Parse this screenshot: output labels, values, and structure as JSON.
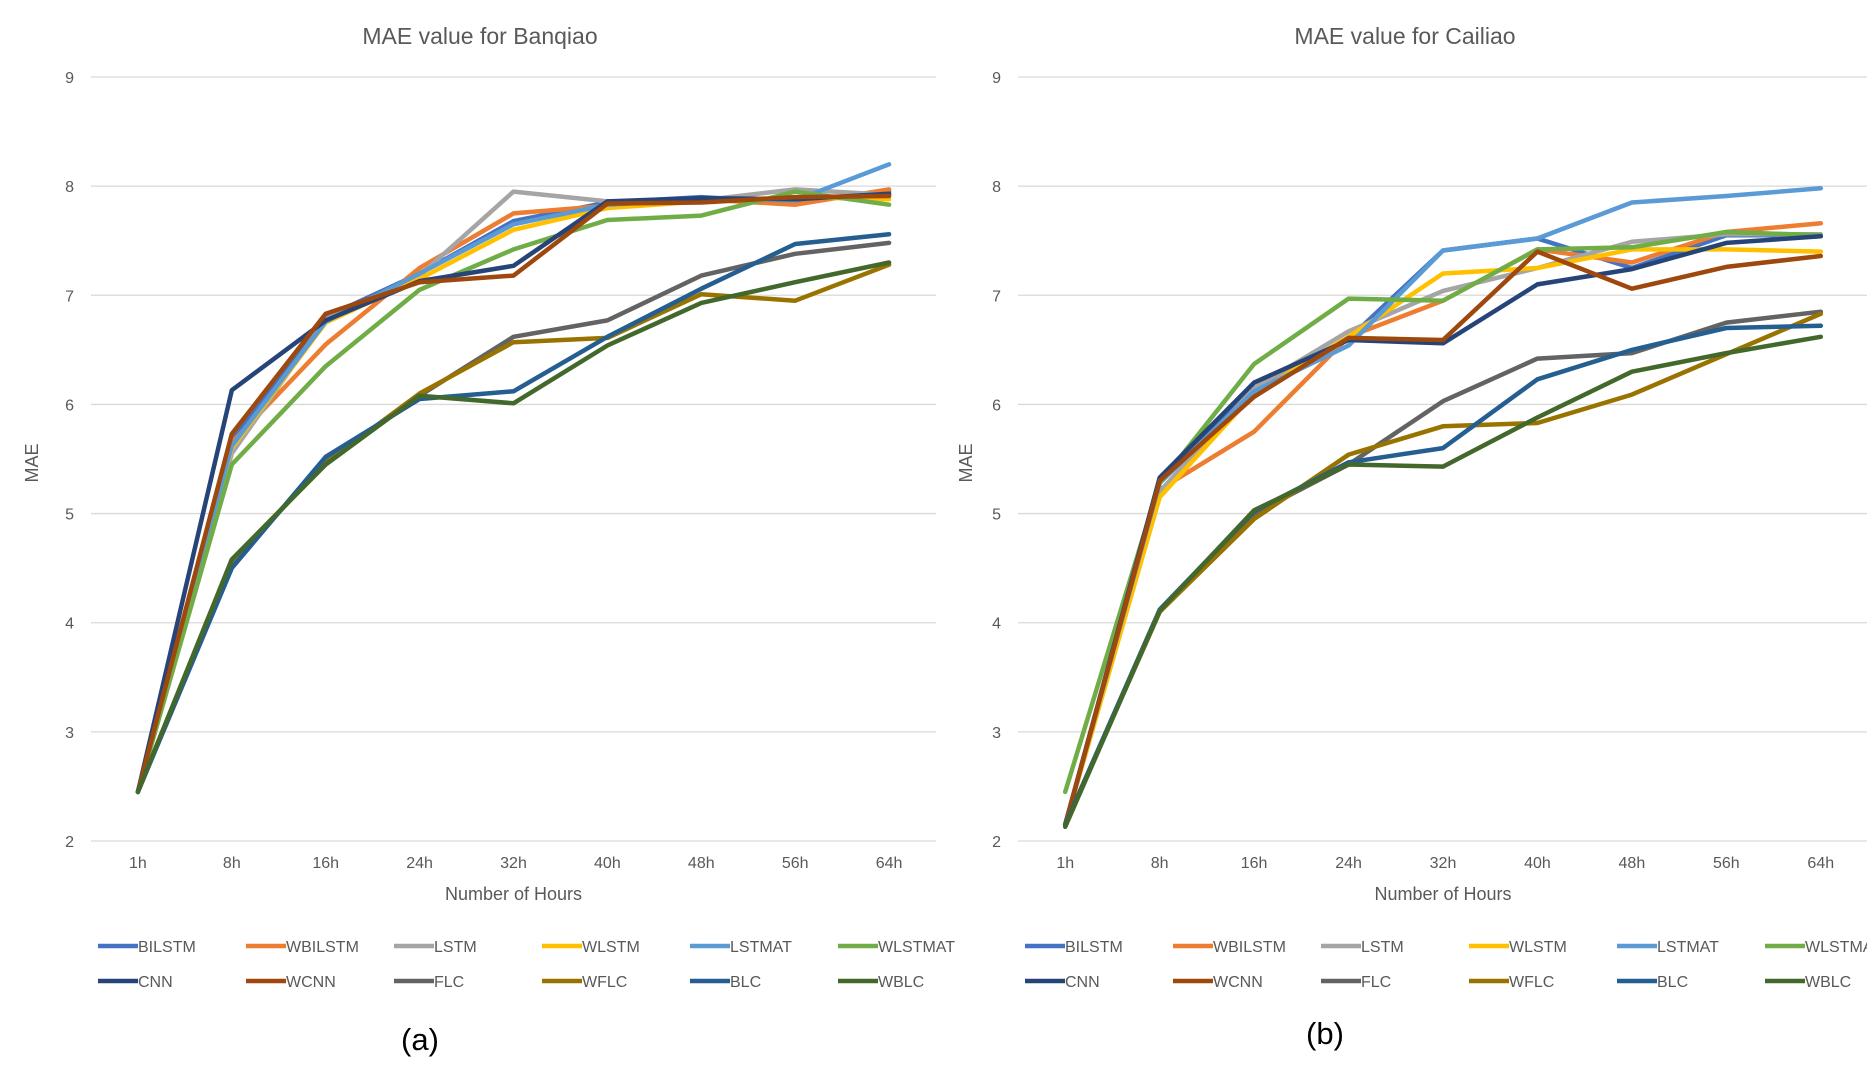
{
  "chart_data": [
    {
      "type": "line",
      "title": "MAE value for Banqiao",
      "xlabel": "Number of Hours",
      "ylabel": "MAE",
      "panel_label": "(a)",
      "ylim": [
        2,
        9
      ],
      "yticks": [
        "2",
        "3",
        "4",
        "5",
        "6",
        "7",
        "8",
        "9"
      ],
      "categories": [
        "1h",
        "8h",
        "16h",
        "24h",
        "32h",
        "40h",
        "48h",
        "56h",
        "64h"
      ],
      "grid": true,
      "legend_position": "bottom",
      "series": [
        {
          "name": "BILSTM",
          "color": "#4472C4",
          "values": [
            2.45,
            5.68,
            6.8,
            7.2,
            7.68,
            7.85,
            7.9,
            7.85,
            7.95
          ]
        },
        {
          "name": "WBILSTM",
          "color": "#ED7D31",
          "values": [
            2.45,
            5.65,
            6.55,
            7.25,
            7.75,
            7.82,
            7.88,
            7.83,
            7.97
          ]
        },
        {
          "name": "LSTM",
          "color": "#A5A5A5",
          "values": [
            2.45,
            5.55,
            6.78,
            7.18,
            7.95,
            7.86,
            7.87,
            7.97,
            7.92
          ]
        },
        {
          "name": "WLSTM",
          "color": "#FFC000",
          "values": [
            2.45,
            5.6,
            6.75,
            7.15,
            7.6,
            7.8,
            7.86,
            7.9,
            7.88
          ]
        },
        {
          "name": "LSTMAT",
          "color": "#5B9BD5",
          "values": [
            2.45,
            5.62,
            6.76,
            7.2,
            7.65,
            7.83,
            7.88,
            7.87,
            8.2
          ]
        },
        {
          "name": "WLSTMAT",
          "color": "#70AD47",
          "values": [
            2.45,
            5.45,
            6.35,
            7.05,
            7.42,
            7.69,
            7.73,
            7.95,
            7.83
          ]
        },
        {
          "name": "CNN",
          "color": "#264478",
          "values": [
            2.45,
            6.13,
            6.77,
            7.13,
            7.27,
            7.86,
            7.89,
            7.88,
            7.93
          ]
        },
        {
          "name": "WCNN",
          "color": "#9E480E",
          "values": [
            2.45,
            5.73,
            6.83,
            7.12,
            7.18,
            7.84,
            7.85,
            7.9,
            7.91
          ]
        },
        {
          "name": "FLC",
          "color": "#636363",
          "values": [
            2.45,
            4.55,
            5.47,
            6.08,
            6.62,
            6.77,
            7.18,
            7.38,
            7.48
          ]
        },
        {
          "name": "WFLC",
          "color": "#997300",
          "values": [
            2.45,
            4.57,
            5.46,
            6.1,
            6.57,
            6.61,
            7.01,
            6.95,
            7.28
          ]
        },
        {
          "name": "BLC",
          "color": "#255E91",
          "values": [
            2.45,
            4.5,
            5.52,
            6.05,
            6.12,
            6.62,
            7.06,
            7.47,
            7.56
          ]
        },
        {
          "name": "WBLC",
          "color": "#43682B",
          "values": [
            2.45,
            4.58,
            5.45,
            6.08,
            6.01,
            6.54,
            6.93,
            7.12,
            7.3
          ]
        }
      ]
    },
    {
      "type": "line",
      "title": "MAE value for Cailiao",
      "xlabel": "Number of Hours",
      "ylabel": "MAE",
      "panel_label": "(b)",
      "ylim": [
        2,
        9
      ],
      "yticks": [
        "2",
        "3",
        "4",
        "5",
        "6",
        "7",
        "8",
        "9"
      ],
      "categories": [
        "1h",
        "8h",
        "16h",
        "24h",
        "32h",
        "40h",
        "48h",
        "56h",
        "64h"
      ],
      "grid": true,
      "legend_position": "bottom",
      "series": [
        {
          "name": "BILSTM",
          "color": "#4472C4",
          "values": [
            2.15,
            5.3,
            6.15,
            6.6,
            7.41,
            7.52,
            7.25,
            7.55,
            7.55
          ]
        },
        {
          "name": "WBILSTM",
          "color": "#ED7D31",
          "values": [
            2.15,
            5.22,
            5.75,
            6.62,
            6.95,
            7.42,
            7.3,
            7.58,
            7.66
          ]
        },
        {
          "name": "LSTM",
          "color": "#A5A5A5",
          "values": [
            2.15,
            5.2,
            6.15,
            6.67,
            7.04,
            7.25,
            7.49,
            7.56,
            7.56
          ]
        },
        {
          "name": "WLSTM",
          "color": "#FFC000",
          "values": [
            2.15,
            5.15,
            6.1,
            6.62,
            7.2,
            7.25,
            7.42,
            7.42,
            7.4
          ]
        },
        {
          "name": "LSTMAT",
          "color": "#5B9BD5",
          "values": [
            2.15,
            5.28,
            6.12,
            6.54,
            7.41,
            7.52,
            7.85,
            7.91,
            7.98
          ]
        },
        {
          "name": "WLSTMAT",
          "color": "#70AD47",
          "values": [
            2.45,
            5.28,
            6.37,
            6.97,
            6.95,
            7.42,
            7.44,
            7.58,
            7.55
          ]
        },
        {
          "name": "CNN",
          "color": "#264478",
          "values": [
            2.15,
            5.33,
            6.2,
            6.59,
            6.56,
            7.1,
            7.24,
            7.48,
            7.54
          ]
        },
        {
          "name": "WCNN",
          "color": "#9E480E",
          "values": [
            2.15,
            5.3,
            6.07,
            6.61,
            6.59,
            7.4,
            7.06,
            7.26,
            7.36
          ]
        },
        {
          "name": "FLC",
          "color": "#636363",
          "values": [
            2.15,
            4.1,
            5.0,
            5.45,
            6.03,
            6.42,
            6.47,
            6.75,
            6.85
          ]
        },
        {
          "name": "WFLC",
          "color": "#997300",
          "values": [
            2.15,
            4.1,
            4.95,
            5.54,
            5.8,
            5.83,
            6.09,
            6.46,
            6.83
          ]
        },
        {
          "name": "BLC",
          "color": "#255E91",
          "values": [
            2.15,
            4.12,
            5.02,
            5.47,
            5.6,
            6.23,
            6.5,
            6.7,
            6.72
          ]
        },
        {
          "name": "WBLC",
          "color": "#43682B",
          "values": [
            2.13,
            4.11,
            5.03,
            5.45,
            5.43,
            5.88,
            6.3,
            6.47,
            6.62
          ]
        }
      ]
    }
  ]
}
